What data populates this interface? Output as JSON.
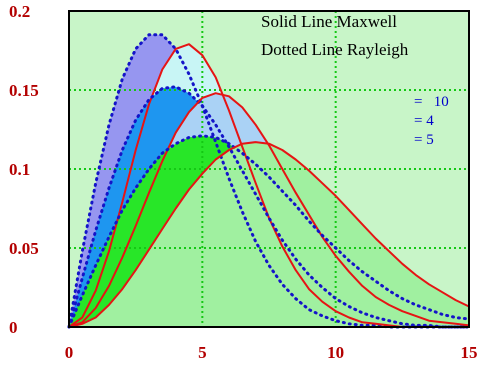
{
  "chart_data": {
    "type": "area",
    "xlim": [
      0,
      15
    ],
    "ylim": [
      0,
      0.2
    ],
    "x_ticks": [
      "0",
      "5",
      "10",
      "15"
    ],
    "y_ticks": [
      "0",
      "0.05",
      "0.1",
      "0.15",
      "0.2"
    ],
    "grid": true,
    "legend": {
      "placement": "top-right",
      "lines": [
        "Solid Line Maxwell",
        "Dotted Line Rayleigh"
      ]
    },
    "sigma_labels": [
      "=   10",
      "= 4",
      "= 5"
    ],
    "x": [
      0,
      0.5,
      1,
      1.5,
      2,
      2.5,
      3,
      3.5,
      4,
      4.5,
      5,
      5.5,
      6,
      6.5,
      7,
      7.5,
      8,
      8.5,
      9,
      9.5,
      10,
      10.5,
      11,
      11.5,
      12,
      12.5,
      13,
      13.5,
      14,
      14.5,
      15
    ],
    "series": [
      {
        "kind": "rayleigh",
        "line": "dotted",
        "fill": "#9696f0",
        "values": [
          0,
          0.048,
          0.091,
          0.128,
          0.157,
          0.176,
          0.185,
          0.185,
          0.176,
          0.16,
          0.14,
          0.117,
          0.094,
          0.073,
          0.054,
          0.039,
          0.027,
          0.018,
          0.011,
          0.007,
          0.004,
          0.002,
          0.001,
          0.001,
          0,
          0,
          0,
          0,
          0,
          0,
          0
        ]
      },
      {
        "kind": "maxwell",
        "line": "solid",
        "fill": "#c8f5f5",
        "values": [
          0,
          0.006,
          0.023,
          0.048,
          0.079,
          0.112,
          0.141,
          0.163,
          0.176,
          0.179,
          0.172,
          0.158,
          0.137,
          0.114,
          0.091,
          0.069,
          0.051,
          0.036,
          0.024,
          0.016,
          0.01,
          0.006,
          0.003,
          0.002,
          0.001,
          0,
          0,
          0,
          0,
          0,
          0
        ]
      },
      {
        "kind": "rayleigh",
        "line": "dotted",
        "fill": "#1e96f0",
        "values": [
          0,
          0.031,
          0.061,
          0.088,
          0.112,
          0.131,
          0.144,
          0.151,
          0.152,
          0.148,
          0.14,
          0.128,
          0.114,
          0.099,
          0.084,
          0.069,
          0.055,
          0.043,
          0.033,
          0.025,
          0.018,
          0.013,
          0.009,
          0.006,
          0.004,
          0.002,
          0.001,
          0.001,
          0,
          0,
          0
        ]
      },
      {
        "kind": "maxwell",
        "line": "solid",
        "fill": "#aad2f5",
        "values": [
          0,
          0.003,
          0.012,
          0.026,
          0.044,
          0.064,
          0.085,
          0.105,
          0.123,
          0.136,
          0.145,
          0.148,
          0.146,
          0.139,
          0.128,
          0.115,
          0.1,
          0.085,
          0.071,
          0.057,
          0.045,
          0.035,
          0.026,
          0.019,
          0.014,
          0.01,
          0.007,
          0.004,
          0.003,
          0.002,
          0.001
        ]
      },
      {
        "kind": "rayleigh",
        "line": "dotted",
        "fill": "#28e628",
        "values": [
          0,
          0.02,
          0.039,
          0.057,
          0.074,
          0.088,
          0.1,
          0.11,
          0.116,
          0.12,
          0.121,
          0.12,
          0.116,
          0.11,
          0.103,
          0.095,
          0.086,
          0.077,
          0.067,
          0.058,
          0.05,
          0.042,
          0.035,
          0.029,
          0.023,
          0.018,
          0.014,
          0.011,
          0.008,
          0.006,
          0.005
        ]
      },
      {
        "kind": "maxwell",
        "line": "solid",
        "fill": "#a0f0a0",
        "values": [
          0,
          0.002,
          0.006,
          0.014,
          0.024,
          0.036,
          0.049,
          0.062,
          0.075,
          0.087,
          0.097,
          0.106,
          0.112,
          0.116,
          0.117,
          0.116,
          0.112,
          0.106,
          0.099,
          0.091,
          0.083,
          0.074,
          0.065,
          0.056,
          0.048,
          0.04,
          0.033,
          0.027,
          0.022,
          0.017,
          0.013
        ]
      }
    ],
    "colors": {
      "plot_background": "#c8f5c8",
      "grid": "#14c814",
      "maxwell_line": "#e61414",
      "rayleigh_line": "#1414c8",
      "tick_labels": "#b30000"
    }
  }
}
